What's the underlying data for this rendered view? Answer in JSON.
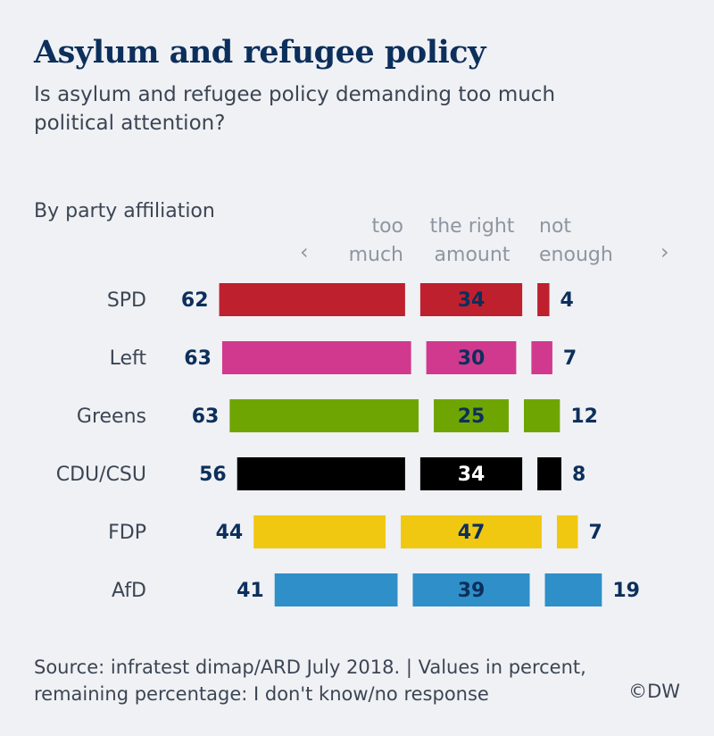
{
  "chart_data": {
    "type": "bar",
    "subtype": "diverging-grouped-horizontal",
    "title": "Asylum and refugee policy",
    "subtitle": "Is asylum and refugee policy demanding too much political attention?",
    "group_label": "By party affiliation",
    "columns": [
      {
        "key": "too_much",
        "label": "too\nmuch"
      },
      {
        "key": "right_amount",
        "label": "the right\namount"
      },
      {
        "key": "not_enough",
        "label": "not\nenough"
      }
    ],
    "left_arrow": "‹",
    "right_arrow": "›",
    "categories": [
      "SPD",
      "Left",
      "Greens",
      "CDU/CSU",
      "FDP",
      "AfD"
    ],
    "colors": [
      "#be202e",
      "#d1398e",
      "#6fa502",
      "#000000",
      "#f0c812",
      "#2f8fc8"
    ],
    "mid_label_colors": [
      "#0c2f5c",
      "#0c2f5c",
      "#0c2f5c",
      "#ffffff",
      "#0c2f5c",
      "#0c2f5c"
    ],
    "series": [
      {
        "name": "too much",
        "values": [
          62,
          63,
          63,
          56,
          44,
          41
        ]
      },
      {
        "name": "the right amount",
        "values": [
          34,
          30,
          25,
          34,
          47,
          39
        ]
      },
      {
        "name": "not enough",
        "values": [
          4,
          7,
          12,
          8,
          7,
          19
        ]
      }
    ],
    "unit": "percent",
    "value_label_color": "#0c2f5c"
  },
  "footer": {
    "source": "Source: infratest dimap/ARD July 2018. | Values in percent, remaining percentage: I don't know/no response",
    "copyright": "©DW"
  }
}
